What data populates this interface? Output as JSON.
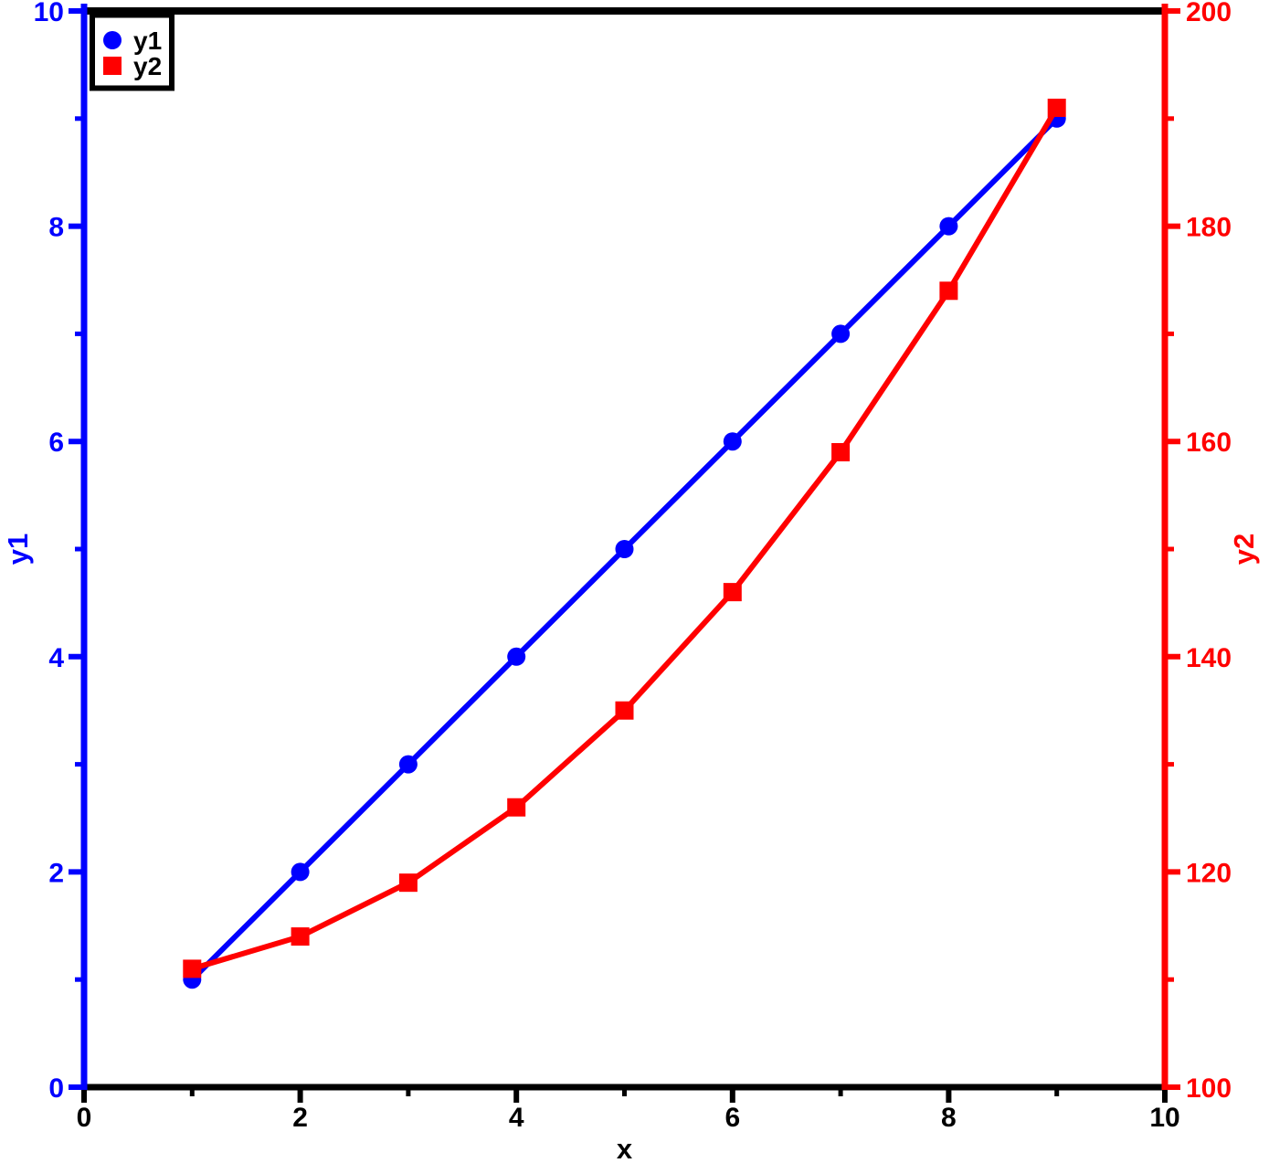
{
  "chart_data": {
    "type": "line",
    "title": "",
    "x": [
      1,
      2,
      3,
      4,
      5,
      6,
      7,
      8,
      9
    ],
    "series": [
      {
        "name": "y1",
        "axis": "left",
        "color": "#0000ff",
        "marker": "circle",
        "values": [
          1,
          2,
          3,
          4,
          5,
          6,
          7,
          8,
          9
        ]
      },
      {
        "name": "y2",
        "axis": "right",
        "color": "#ff0000",
        "marker": "square",
        "values": [
          111,
          114,
          119,
          126,
          135,
          146,
          159,
          174,
          191
        ]
      }
    ],
    "x_axis": {
      "label": "x",
      "color": "#000000",
      "lim": [
        0,
        10
      ],
      "major_ticks": [
        0,
        2,
        4,
        6,
        8,
        10
      ],
      "minor_ticks": [
        1,
        3,
        5,
        7,
        9
      ]
    },
    "left_axis": {
      "label": "y1",
      "color": "#0000ff",
      "lim": [
        0,
        10
      ],
      "major_ticks": [
        0,
        2,
        4,
        6,
        8,
        10
      ],
      "minor_ticks": [
        1,
        3,
        5,
        7,
        9
      ]
    },
    "right_axis": {
      "label": "y2",
      "color": "#ff0000",
      "lim": [
        100,
        200
      ],
      "major_ticks": [
        100,
        120,
        140,
        160,
        180,
        200
      ],
      "minor_ticks": [
        110,
        130,
        150,
        170,
        190
      ]
    },
    "legend": {
      "position": "top-left",
      "entries": [
        {
          "label": "y1",
          "marker": "circle",
          "color": "#0000ff"
        },
        {
          "label": "y2",
          "marker": "square",
          "color": "#ff0000"
        }
      ]
    },
    "grid": false,
    "background": "#ffffff",
    "frame_color": "#000000"
  }
}
